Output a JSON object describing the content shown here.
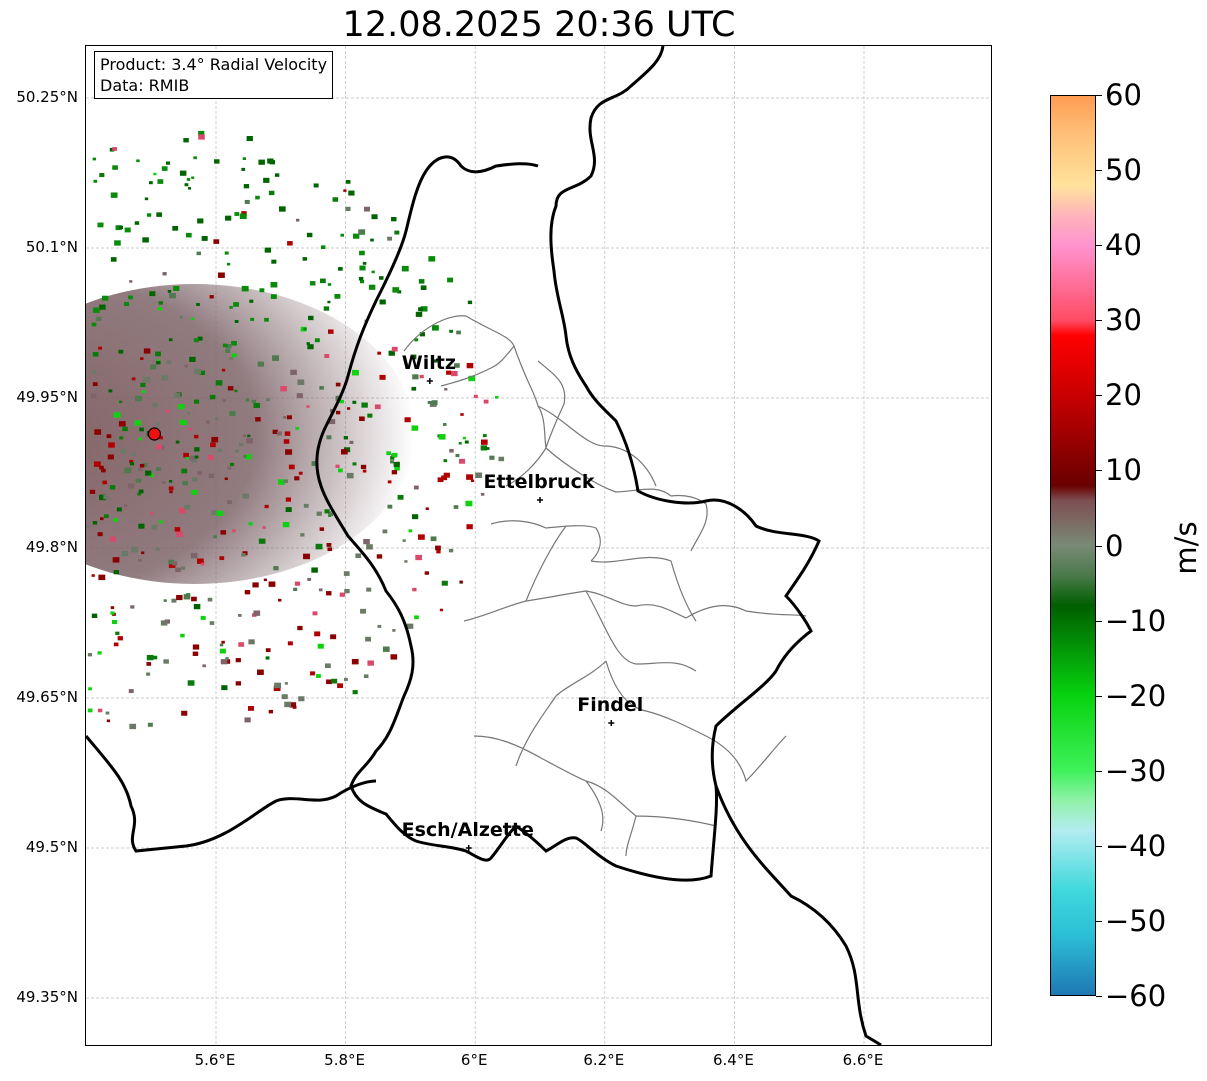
{
  "title": "12.08.2025 20:36 UTC",
  "info": {
    "product": "Product: 3.4° Radial Velocity",
    "data": "Data: RMIB"
  },
  "lat_ticks": [
    {
      "value": 50.25,
      "label": "50.25°N"
    },
    {
      "value": 50.1,
      "label": "50.1°N"
    },
    {
      "value": 49.95,
      "label": "49.95°N"
    },
    {
      "value": 49.8,
      "label": "49.8°N"
    },
    {
      "value": 49.65,
      "label": "49.65°N"
    },
    {
      "value": 49.5,
      "label": "49.5°N"
    },
    {
      "value": 49.35,
      "label": "49.35°N"
    }
  ],
  "lon_ticks": [
    {
      "value": 5.6,
      "label": "5.6°E"
    },
    {
      "value": 5.8,
      "label": "5.8°E"
    },
    {
      "value": 6.0,
      "label": "6°E"
    },
    {
      "value": 6.2,
      "label": "6.2°E"
    },
    {
      "value": 6.4,
      "label": "6.4°E"
    },
    {
      "value": 6.6,
      "label": "6.6°E"
    }
  ],
  "cities": [
    {
      "name": "Wiltz",
      "lon": 5.93,
      "lat": 49.967
    },
    {
      "name": "Ettelbruck",
      "lon": 6.1,
      "lat": 49.848
    },
    {
      "name": "Findel",
      "lon": 6.21,
      "lat": 49.625
    },
    {
      "name": "Esch/Alzette",
      "lon": 5.99,
      "lat": 49.5
    }
  ],
  "radar_site": {
    "lon": 5.505,
    "lat": 49.914
  },
  "colorbar": {
    "unit": "m/s",
    "min": -60,
    "max": 60,
    "ticks": [
      {
        "value": 60,
        "label": "60"
      },
      {
        "value": 50,
        "label": "50"
      },
      {
        "value": 40,
        "label": "40"
      },
      {
        "value": 30,
        "label": "30"
      },
      {
        "value": 20,
        "label": "20"
      },
      {
        "value": 10,
        "label": "10"
      },
      {
        "value": 0,
        "label": "0"
      },
      {
        "value": -10,
        "label": "−10"
      },
      {
        "value": -20,
        "label": "−20"
      },
      {
        "value": -30,
        "label": "−30"
      },
      {
        "value": -40,
        "label": "−40"
      },
      {
        "value": -50,
        "label": "−50"
      },
      {
        "value": -60,
        "label": "−60"
      }
    ],
    "stops": [
      {
        "value": -60,
        "color": "#1f78b4"
      },
      {
        "value": -52,
        "color": "#2bbfd6"
      },
      {
        "value": -46,
        "color": "#3fd9dc"
      },
      {
        "value": -38,
        "color": "#b3ecf0"
      },
      {
        "value": -34,
        "color": "#8ff2a8"
      },
      {
        "value": -30,
        "color": "#3ef25a"
      },
      {
        "value": -20,
        "color": "#07d20f"
      },
      {
        "value": -8,
        "color": "#005f00"
      },
      {
        "value": -4,
        "color": "#4a7a4a"
      },
      {
        "value": 0,
        "color": "#7a8a76"
      },
      {
        "value": 6,
        "color": "#7d4f52"
      },
      {
        "value": 8,
        "color": "#6a0000"
      },
      {
        "value": 20,
        "color": "#c80000"
      },
      {
        "value": 28,
        "color": "#ff0000"
      },
      {
        "value": 30,
        "color": "#ff4b63"
      },
      {
        "value": 40,
        "color": "#ff93cf"
      },
      {
        "value": 44,
        "color": "#ffb3bb"
      },
      {
        "value": 48,
        "color": "#ffe39c"
      },
      {
        "value": 55,
        "color": "#ffbf78"
      },
      {
        "value": 60,
        "color": "#ff9c52"
      }
    ]
  }
}
